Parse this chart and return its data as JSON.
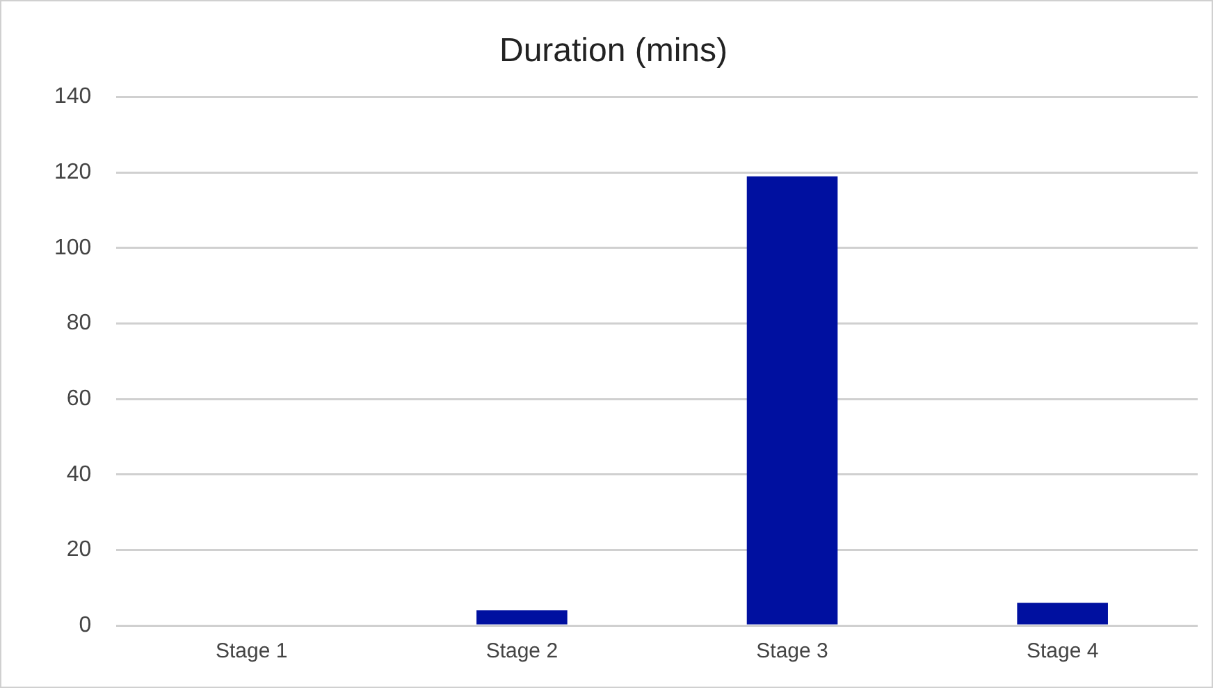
{
  "chart_data": {
    "type": "bar",
    "title": "Duration (mins)",
    "categories": [
      "Stage 1",
      "Stage 2",
      "Stage 3",
      "Stage 4"
    ],
    "values": [
      0,
      4,
      119,
      6
    ],
    "color": "#0010a0",
    "ylim": [
      0,
      140
    ],
    "yticks": [
      0,
      20,
      40,
      60,
      80,
      100,
      120,
      140
    ],
    "grid": "y",
    "legend": false
  }
}
